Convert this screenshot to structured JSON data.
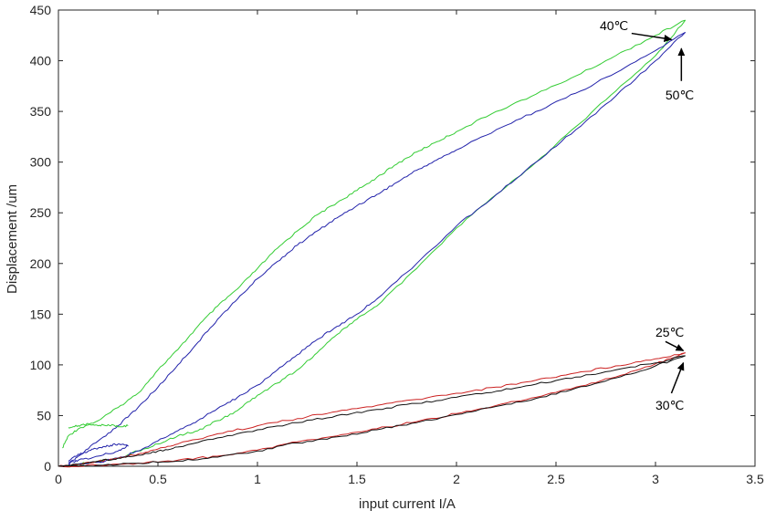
{
  "chart_data": {
    "type": "line",
    "title": "",
    "xlabel": "input current I/A",
    "ylabel": "Displacement /um",
    "xlim": [
      0,
      3.5
    ],
    "ylim": [
      0,
      450
    ],
    "xticks": [
      "0",
      "0.5",
      "1",
      "1.5",
      "2",
      "2.5",
      "3",
      "3.5"
    ],
    "yticks": [
      "0",
      "50",
      "100",
      "150",
      "200",
      "250",
      "300",
      "350",
      "400",
      "450"
    ],
    "grid": false,
    "legend": "none",
    "series": [
      {
        "color": "#33cc33",
        "branches": [
          {
            "x": [
              0.02,
              0.05,
              0.1,
              0.2,
              0.3,
              0.4,
              0.5,
              0.6,
              0.7,
              0.8,
              0.9,
              1.0,
              1.1,
              1.2,
              1.3,
              1.4,
              1.5,
              1.6,
              1.7,
              1.8,
              1.9,
              2.0,
              2.2,
              2.4,
              2.6,
              2.8,
              3.0,
              3.15
            ],
            "y": [
              18,
              30,
              37,
              45,
              58,
              72,
              95,
              115,
              138,
              158,
              175,
              195,
              215,
              232,
              248,
              260,
              272,
              285,
              298,
              310,
              320,
              330,
              350,
              367,
              385,
              405,
              425,
              440
            ]
          },
          {
            "x": [
              3.15,
              3.0,
              2.8,
              2.6,
              2.4,
              2.2,
              2.0,
              1.8,
              1.6,
              1.5,
              1.4,
              1.3,
              1.2,
              1.1,
              1.0,
              0.9,
              0.8,
              0.7,
              0.6,
              0.5,
              0.4,
              0.3,
              0.2,
              0.1,
              0.05
            ],
            "y": [
              440,
              405,
              370,
              335,
              300,
              268,
              235,
              195,
              158,
              145,
              130,
              112,
              95,
              82,
              70,
              55,
              45,
              35,
              30,
              22,
              15,
              8,
              5,
              2,
              0
            ]
          }
        ]
      },
      {
        "color": "#2222aa",
        "branches": [
          {
            "x": [
              0.05,
              0.1,
              0.2,
              0.3,
              0.4,
              0.5,
              0.6,
              0.7,
              0.8,
              0.9,
              1.0,
              1.1,
              1.2,
              1.3,
              1.4,
              1.5,
              1.6,
              1.7,
              1.8,
              1.9,
              2.0,
              2.2,
              2.4,
              2.6,
              2.8,
              3.0,
              3.15
            ],
            "y": [
              2,
              10,
              25,
              40,
              58,
              78,
              100,
              122,
              145,
              165,
              185,
              202,
              218,
              232,
              245,
              257,
              268,
              280,
              292,
              302,
              312,
              332,
              350,
              368,
              388,
              410,
              428
            ]
          },
          {
            "x": [
              3.15,
              3.0,
              2.8,
              2.6,
              2.4,
              2.2,
              2.0,
              1.8,
              1.6,
              1.5,
              1.4,
              1.3,
              1.2,
              1.1,
              1.0,
              0.9,
              0.8,
              0.7,
              0.6,
              0.5,
              0.4,
              0.3,
              0.2,
              0.1,
              0.05
            ],
            "y": [
              428,
              400,
              365,
              332,
              300,
              268,
              237,
              200,
              165,
              150,
              138,
              125,
              110,
              95,
              80,
              68,
              57,
              45,
              35,
              25,
              15,
              8,
              4,
              2,
              1
            ]
          }
        ]
      },
      {
        "color": "#cc2222",
        "branches": [
          {
            "x": [
              0.0,
              0.1,
              0.2,
              0.3,
              0.4,
              0.5,
              0.6,
              0.8,
              1.0,
              1.2,
              1.4,
              1.6,
              1.8,
              2.0,
              2.2,
              2.4,
              2.6,
              2.8,
              3.0,
              3.15
            ],
            "y": [
              0,
              2,
              5,
              8,
              12,
              17,
              22,
              32,
              40,
              47,
              54,
              60,
              66,
              72,
              78,
              85,
              92,
              99,
              106,
              112
            ]
          },
          {
            "x": [
              3.15,
              3.0,
              2.8,
              2.6,
              2.4,
              2.2,
              2.0,
              1.8,
              1.6,
              1.4,
              1.2,
              1.0,
              0.8,
              0.6,
              0.4,
              0.2,
              0.0
            ],
            "y": [
              112,
              101,
              88,
              78,
              68,
              60,
              52,
              44,
              37,
              30,
              24,
              16,
              10,
              6,
              3,
              1,
              0
            ]
          }
        ]
      },
      {
        "color": "#111111",
        "branches": [
          {
            "x": [
              0.0,
              0.1,
              0.2,
              0.3,
              0.4,
              0.5,
              0.6,
              0.8,
              1.0,
              1.2,
              1.4,
              1.6,
              1.8,
              2.0,
              2.2,
              2.4,
              2.6,
              2.8,
              3.0,
              3.15
            ],
            "y": [
              0,
              2,
              5,
              8,
              11,
              15,
              19,
              28,
              36,
              43,
              50,
              56,
              62,
              68,
              74,
              81,
              88,
              95,
              102,
              109
            ]
          },
          {
            "x": [
              3.15,
              3.0,
              2.8,
              2.6,
              2.4,
              2.2,
              2.0,
              1.8,
              1.6,
              1.4,
              1.2,
              1.0,
              0.8,
              0.6,
              0.4,
              0.2,
              0.0
            ],
            "y": [
              109,
              99,
              87,
              77,
              67,
              59,
              51,
              43,
              36,
              29,
              23,
              15,
              9,
              5,
              3,
              1,
              0
            ]
          }
        ]
      },
      {
        "color": "#33cc33",
        "branches": [
          {
            "x": [
              0.05,
              0.1,
              0.15,
              0.2,
              0.25,
              0.3,
              0.35
            ],
            "y": [
              38,
              40,
              42,
              40,
              41,
              39,
              40
            ]
          }
        ]
      },
      {
        "color": "#2222aa",
        "branches": [
          {
            "x": [
              0.05,
              0.1,
              0.15,
              0.2,
              0.25,
              0.3,
              0.35,
              0.3,
              0.2,
              0.1,
              0.05
            ],
            "y": [
              5,
              12,
              15,
              18,
              20,
              22,
              20,
              15,
              10,
              6,
              3
            ]
          }
        ]
      }
    ],
    "annotations": [
      {
        "text": "40℃",
        "pos": [
          2.72,
          430
        ],
        "arrow_from": [
          2.88,
          427
        ],
        "arrow_to": [
          3.08,
          421
        ]
      },
      {
        "text": "50℃",
        "pos": [
          3.05,
          362
        ],
        "arrow_from": [
          3.13,
          380
        ],
        "arrow_to": [
          3.13,
          412
        ]
      },
      {
        "text": "25℃",
        "pos": [
          3.0,
          128
        ],
        "arrow_from": [
          3.05,
          123
        ],
        "arrow_to": [
          3.14,
          114
        ]
      },
      {
        "text": "30℃",
        "pos": [
          3.0,
          56
        ],
        "arrow_from": [
          3.08,
          72
        ],
        "arrow_to": [
          3.14,
          102
        ]
      }
    ]
  }
}
